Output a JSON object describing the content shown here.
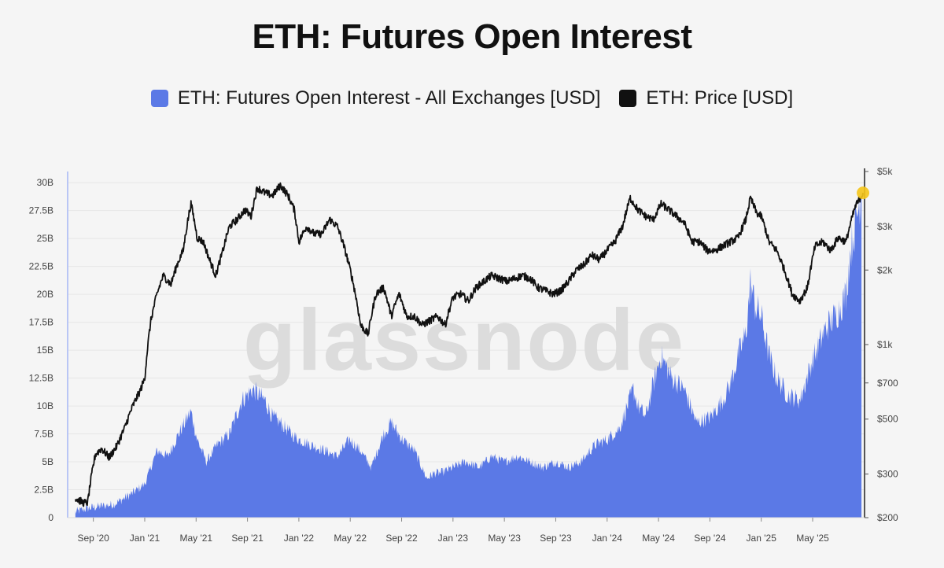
{
  "chart_data": {
    "type": "area+line",
    "title": "ETH: Futures Open Interest",
    "legend": [
      {
        "label": "ETH: Futures Open Interest - All Exchanges [USD]",
        "color": "#5b79e6"
      },
      {
        "label": "ETH: Price [USD]",
        "color": "#111111"
      }
    ],
    "watermark": "glassnode",
    "x_ticks": [
      "Sep '20",
      "Jan '21",
      "May '21",
      "Sep '21",
      "Jan '22",
      "May '22",
      "Sep '22",
      "Jan '23",
      "May '23",
      "Sep '23",
      "Jan '24",
      "May '24",
      "Sep '24",
      "Jan '25",
      "May '25"
    ],
    "left_axis": {
      "label_ticks": [
        "0",
        "2.5B",
        "5B",
        "7.5B",
        "10B",
        "12.5B",
        "15B",
        "17.5B",
        "20B",
        "22.5B",
        "25B",
        "27.5B",
        "30B"
      ],
      "range": [
        0,
        31
      ]
    },
    "right_axis": {
      "label_ticks": [
        "$200",
        "$300",
        "$500",
        "$700",
        "$1k",
        "$2k",
        "$3k",
        "$5k"
      ],
      "tick_values": [
        200,
        300,
        500,
        700,
        1000,
        2000,
        3000,
        5000
      ],
      "scale": "log",
      "range": [
        200,
        5000
      ]
    },
    "x_start": 2020.5,
    "x_end": 2025.67,
    "open_interest_series": {
      "name": "ETH: Futures Open Interest - All Exchanges [USD]",
      "unit": "billions USD",
      "x": [
        2020.55,
        2020.62,
        2020.7,
        2020.8,
        2020.9,
        2021.0,
        2021.08,
        2021.15,
        2021.22,
        2021.3,
        2021.34,
        2021.4,
        2021.47,
        2021.55,
        2021.63,
        2021.7,
        2021.78,
        2021.83,
        2021.88,
        2021.95,
        2022.0,
        2022.08,
        2022.17,
        2022.25,
        2022.33,
        2022.4,
        2022.47,
        2022.55,
        2022.6,
        2022.67,
        2022.75,
        2022.83,
        2022.88,
        2022.92,
        2023.0,
        2023.08,
        2023.17,
        2023.25,
        2023.33,
        2023.42,
        2023.5,
        2023.58,
        2023.67,
        2023.75,
        2023.83,
        2023.92,
        2024.0,
        2024.08,
        2024.17,
        2024.2,
        2024.25,
        2024.3,
        2024.35,
        2024.42,
        2024.5,
        2024.58,
        2024.67,
        2024.75,
        2024.8,
        2024.85,
        2024.9,
        2024.93,
        2024.96,
        2025.0,
        2025.05,
        2025.1,
        2025.17,
        2025.25,
        2025.33,
        2025.42,
        2025.5,
        2025.55,
        2025.58,
        2025.62,
        2025.65
      ],
      "values": [
        0.5,
        0.8,
        1.0,
        1.2,
        2.0,
        3.0,
        6.0,
        5.5,
        7.5,
        9.5,
        7.0,
        5.0,
        6.5,
        7.5,
        10.5,
        11.5,
        10.5,
        9.0,
        8.5,
        7.5,
        7.0,
        6.5,
        6.0,
        5.5,
        7.0,
        6.0,
        4.5,
        7.5,
        8.5,
        7.0,
        6.0,
        3.5,
        4.0,
        4.0,
        4.5,
        5.0,
        4.5,
        5.5,
        5.0,
        5.5,
        5.0,
        4.5,
        5.0,
        4.5,
        5.0,
        6.5,
        7.0,
        8.0,
        11.5,
        10.0,
        9.0,
        12.0,
        14.5,
        12.5,
        11.5,
        8.5,
        9.0,
        10.5,
        12.0,
        14.5,
        16.5,
        21.0,
        19.0,
        18.0,
        14.5,
        12.5,
        11.0,
        10.5,
        14.0,
        17.0,
        18.5,
        20.0,
        24.0,
        27.0,
        29.5
      ]
    },
    "price_series": {
      "name": "ETH: Price [USD]",
      "unit": "USD",
      "x": [
        2020.55,
        2020.6,
        2020.63,
        2020.68,
        2020.72,
        2020.77,
        2020.82,
        2020.87,
        2020.92,
        2020.97,
        2021.0,
        2021.04,
        2021.08,
        2021.12,
        2021.17,
        2021.21,
        2021.25,
        2021.3,
        2021.34,
        2021.38,
        2021.42,
        2021.46,
        2021.5,
        2021.55,
        2021.6,
        2021.65,
        2021.69,
        2021.73,
        2021.78,
        2021.83,
        2021.88,
        2021.93,
        2021.97,
        2022.0,
        2022.05,
        2022.1,
        2022.15,
        2022.2,
        2022.25,
        2022.3,
        2022.35,
        2022.4,
        2022.45,
        2022.5,
        2022.55,
        2022.6,
        2022.65,
        2022.7,
        2022.75,
        2022.8,
        2022.85,
        2022.9,
        2022.95,
        2023.0,
        2023.05,
        2023.1,
        2023.15,
        2023.2,
        2023.25,
        2023.3,
        2023.35,
        2023.4,
        2023.45,
        2023.5,
        2023.55,
        2023.6,
        2023.65,
        2023.7,
        2023.75,
        2023.8,
        2023.85,
        2023.9,
        2023.95,
        2024.0,
        2024.05,
        2024.1,
        2024.15,
        2024.2,
        2024.25,
        2024.3,
        2024.35,
        2024.4,
        2024.45,
        2024.5,
        2024.55,
        2024.6,
        2024.65,
        2024.7,
        2024.75,
        2024.8,
        2024.85,
        2024.9,
        2024.93,
        2024.97,
        2025.0,
        2025.05,
        2025.1,
        2025.15,
        2025.2,
        2025.25,
        2025.3,
        2025.35,
        2025.4,
        2025.45,
        2025.5,
        2025.55,
        2025.58,
        2025.61,
        2025.64,
        2025.66
      ],
      "values": [
        240,
        230,
        230,
        360,
        380,
        350,
        390,
        460,
        560,
        650,
        730,
        1250,
        1600,
        1900,
        1750,
        2100,
        2400,
        3700,
        2700,
        2600,
        2200,
        1900,
        2300,
        3000,
        3200,
        3500,
        3300,
        4300,
        4100,
        4000,
        4400,
        4000,
        3500,
        2600,
        3000,
        2800,
        2800,
        3200,
        3000,
        2400,
        1800,
        1200,
        1100,
        1600,
        1700,
        1300,
        1600,
        1300,
        1300,
        1200,
        1250,
        1300,
        1200,
        1550,
        1600,
        1500,
        1700,
        1800,
        1900,
        1850,
        1800,
        1850,
        1900,
        1850,
        1700,
        1650,
        1600,
        1650,
        1800,
        2000,
        2100,
        2300,
        2200,
        2400,
        2600,
        3000,
        3900,
        3500,
        3300,
        3200,
        3700,
        3500,
        3300,
        3100,
        2600,
        2600,
        2400,
        2400,
        2500,
        2600,
        2700,
        3200,
        3900,
        3400,
        3300,
        2600,
        2400,
        2000,
        1600,
        1500,
        1700,
        2500,
        2600,
        2400,
        2700,
        2600,
        3100,
        3600,
        3900,
        4100
      ]
    },
    "highlight_point": {
      "series": "ETH: Price [USD]",
      "x": 2025.66,
      "value": 4100,
      "color": "#f5c518"
    }
  }
}
